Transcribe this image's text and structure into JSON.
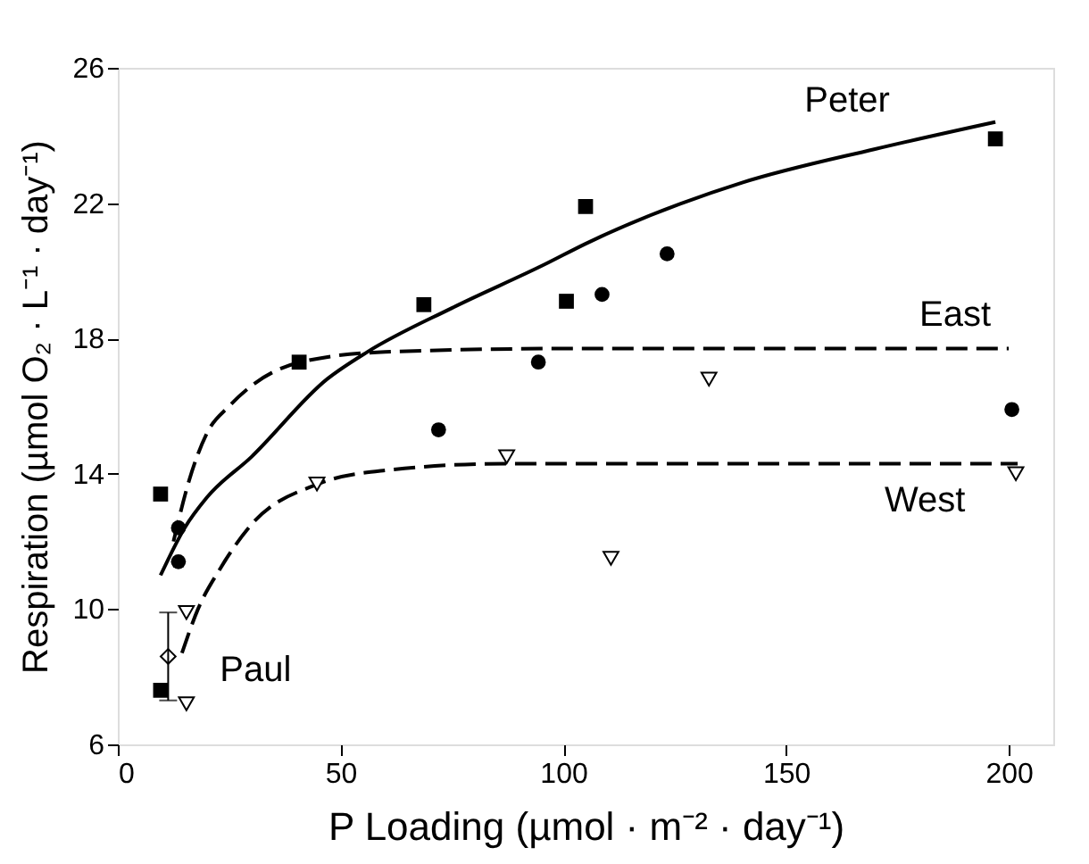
{
  "chart_data": {
    "type": "scatter",
    "xlabel": "P Loading (µmol · m⁻² · day⁻¹)",
    "ylabel": "Respiration (µmol O₂ · L⁻¹ · day⁻¹)",
    "xlim": [
      0,
      210
    ],
    "ylim": [
      6,
      26
    ],
    "xticks": [
      0,
      50,
      100,
      150,
      200
    ],
    "yticks": [
      6,
      10,
      14,
      18,
      22,
      26
    ],
    "grid": false,
    "series": [
      {
        "marker": "square",
        "color": "#000000",
        "x": [
          9.6,
          9.6,
          40.7,
          68.7,
          100.7,
          105,
          197
        ],
        "values": [
          7.6,
          13.4,
          17.3,
          19.0,
          19.1,
          21.9,
          23.9
        ]
      },
      {
        "marker": "circle",
        "color": "#000000",
        "x": [
          13.6,
          13.6,
          72,
          94.4,
          108.7,
          123.3,
          200.7
        ],
        "values": [
          12.4,
          11.4,
          15.3,
          17.3,
          19.3,
          20.5,
          15.9
        ]
      },
      {
        "marker": "triangle",
        "color": "#000000",
        "x": [
          15.4,
          15.4,
          44.7,
          87.3,
          110.7,
          132.7,
          201.6
        ],
        "values": [
          9.9,
          7.2,
          13.7,
          14.5,
          11.5,
          16.8,
          14.0
        ]
      },
      {
        "name": "Paul",
        "marker": "diamond",
        "color": "#000000",
        "x": [
          11.3
        ],
        "values": [
          8.6
        ],
        "errors": [
          [
            7.3,
            9.9
          ]
        ]
      },
      {
        "name": "Peter",
        "type": "line",
        "line_style": "solid",
        "color": "#000000",
        "x": [
          9.6,
          15,
          20,
          30,
          47,
          56,
          75,
          96,
          105,
          140,
          170,
          197
        ],
        "values": [
          11.0,
          12.4,
          13.3,
          14.5,
          16.8,
          17.6,
          18.9,
          20.2,
          20.8,
          22.6,
          23.6,
          24.4
        ]
      },
      {
        "name": "East",
        "type": "line",
        "line_style": "dashed",
        "color": "#000000",
        "x": [
          12.5,
          16,
          20,
          25,
          30,
          41,
          60,
          100,
          200
        ],
        "values": [
          12.0,
          13.8,
          15.2,
          16.0,
          16.6,
          17.3,
          17.6,
          17.7,
          17.7
        ]
      },
      {
        "name": "West",
        "type": "line",
        "line_style": "dashed",
        "color": "#000000",
        "x": [
          14.4,
          18,
          23,
          30,
          45,
          60,
          87,
          130,
          202
        ],
        "values": [
          8.7,
          10.0,
          11.2,
          12.5,
          13.7,
          14.1,
          14.3,
          14.3,
          14.3
        ]
      }
    ]
  }
}
